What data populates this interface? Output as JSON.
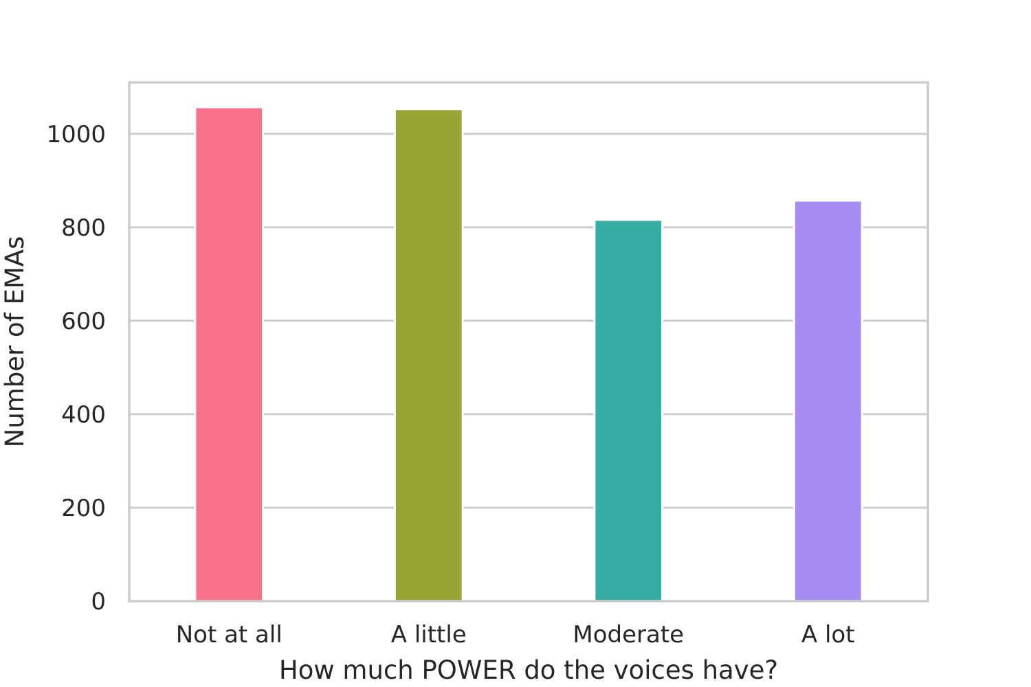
{
  "chart_data": {
    "type": "bar",
    "title": "",
    "xlabel": "How much POWER do the voices have?",
    "ylabel": "Number of EMAs",
    "categories": [
      "Not at all",
      "A little",
      "Moderate",
      "A lot"
    ],
    "values": [
      1057,
      1053,
      816,
      857
    ],
    "colors": [
      "#f77189",
      "#97a431",
      "#36ada4",
      "#a48cf4"
    ],
    "ylim": [
      0,
      1110
    ],
    "yticks": [
      0,
      200,
      400,
      600,
      800,
      1000
    ],
    "grid": true,
    "legend": "none"
  }
}
